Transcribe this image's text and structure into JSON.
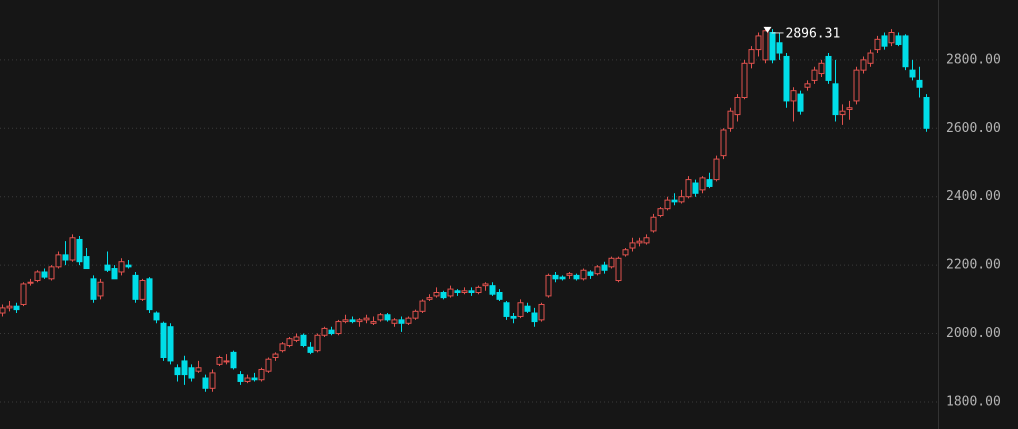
{
  "chart_data": {
    "type": "candlestick",
    "up_color": "#e0524e",
    "down_color": "#00dde8",
    "grid": true,
    "ylim": [
      1721,
      2975
    ],
    "yticks": [
      {
        "value": 1800,
        "label": "1800.00"
      },
      {
        "value": 2000,
        "label": "2000.00"
      },
      {
        "value": 2200,
        "label": "2200.00"
      },
      {
        "value": 2400,
        "label": "2400.00"
      },
      {
        "value": 2600,
        "label": "2600.00"
      },
      {
        "value": 2800,
        "label": "2800.00"
      }
    ],
    "annotation": {
      "index": 109,
      "value": 2896.31
    },
    "ohlc": [
      [
        2060,
        2085,
        2050,
        2075
      ],
      [
        2075,
        2095,
        2065,
        2080
      ],
      [
        2080,
        2090,
        2060,
        2070
      ],
      [
        2085,
        2150,
        2080,
        2145
      ],
      [
        2150,
        2160,
        2140,
        2150
      ],
      [
        2155,
        2185,
        2150,
        2180
      ],
      [
        2180,
        2190,
        2160,
        2165
      ],
      [
        2160,
        2200,
        2155,
        2195
      ],
      [
        2195,
        2240,
        2190,
        2230
      ],
      [
        2230,
        2270,
        2200,
        2215
      ],
      [
        2215,
        2290,
        2210,
        2280
      ],
      [
        2275,
        2285,
        2200,
        2210
      ],
      [
        2225,
        2250,
        2190,
        2190
      ],
      [
        2160,
        2170,
        2090,
        2100
      ],
      [
        2110,
        2160,
        2100,
        2150
      ],
      [
        2200,
        2240,
        2180,
        2185
      ],
      [
        2190,
        2200,
        2160,
        2160
      ],
      [
        2180,
        2220,
        2170,
        2210
      ],
      [
        2200,
        2215,
        2190,
        2195
      ],
      [
        2170,
        2180,
        2090,
        2100
      ],
      [
        2100,
        2160,
        2095,
        2155
      ],
      [
        2160,
        2165,
        2060,
        2070
      ],
      [
        2060,
        2065,
        2030,
        2040
      ],
      [
        2030,
        2035,
        1920,
        1930
      ],
      [
        2020,
        2030,
        1910,
        1920
      ],
      [
        1900,
        1910,
        1860,
        1880
      ],
      [
        1920,
        1935,
        1850,
        1880
      ],
      [
        1900,
        1910,
        1860,
        1870
      ],
      [
        1890,
        1920,
        1885,
        1900
      ],
      [
        1870,
        1880,
        1830,
        1840
      ],
      [
        1840,
        1895,
        1830,
        1885
      ],
      [
        1910,
        1935,
        1905,
        1930
      ],
      [
        1920,
        1940,
        1910,
        1920
      ],
      [
        1945,
        1950,
        1895,
        1900
      ],
      [
        1880,
        1890,
        1850,
        1860
      ],
      [
        1860,
        1880,
        1855,
        1870
      ],
      [
        1870,
        1885,
        1860,
        1865
      ],
      [
        1865,
        1900,
        1860,
        1895
      ],
      [
        1890,
        1930,
        1885,
        1925
      ],
      [
        1930,
        1945,
        1920,
        1940
      ],
      [
        1950,
        1975,
        1945,
        1970
      ],
      [
        1965,
        1990,
        1960,
        1985
      ],
      [
        1980,
        2000,
        1975,
        1990
      ],
      [
        1995,
        2000,
        1960,
        1965
      ],
      [
        1960,
        1975,
        1940,
        1945
      ],
      [
        1950,
        2000,
        1945,
        1995
      ],
      [
        1995,
        2020,
        1990,
        2015
      ],
      [
        2010,
        2020,
        1995,
        2000
      ],
      [
        2000,
        2040,
        1995,
        2035
      ],
      [
        2035,
        2055,
        2030,
        2040
      ],
      [
        2040,
        2050,
        2030,
        2035
      ],
      [
        2035,
        2045,
        2020,
        2040
      ],
      [
        2040,
        2055,
        2030,
        2045
      ],
      [
        2030,
        2050,
        2025,
        2035
      ],
      [
        2040,
        2060,
        2035,
        2055
      ],
      [
        2055,
        2060,
        2035,
        2040
      ],
      [
        2030,
        2045,
        2020,
        2040
      ],
      [
        2040,
        2050,
        2005,
        2030
      ],
      [
        2030,
        2050,
        2025,
        2045
      ],
      [
        2045,
        2070,
        2040,
        2065
      ],
      [
        2065,
        2100,
        2060,
        2095
      ],
      [
        2100,
        2115,
        2095,
        2105
      ],
      [
        2110,
        2135,
        2105,
        2120
      ],
      [
        2120,
        2125,
        2100,
        2105
      ],
      [
        2110,
        2140,
        2105,
        2130
      ],
      [
        2125,
        2130,
        2110,
        2120
      ],
      [
        2120,
        2135,
        2115,
        2125
      ],
      [
        2125,
        2135,
        2110,
        2120
      ],
      [
        2120,
        2140,
        2115,
        2135
      ],
      [
        2140,
        2150,
        2125,
        2145
      ],
      [
        2140,
        2150,
        2110,
        2115
      ],
      [
        2120,
        2130,
        2095,
        2100
      ],
      [
        2090,
        2095,
        2040,
        2050
      ],
      [
        2050,
        2060,
        2030,
        2045
      ],
      [
        2050,
        2100,
        2045,
        2090
      ],
      [
        2080,
        2090,
        2060,
        2065
      ],
      [
        2060,
        2075,
        2020,
        2035
      ],
      [
        2040,
        2090,
        2035,
        2085
      ],
      [
        2110,
        2175,
        2105,
        2170
      ],
      [
        2170,
        2180,
        2150,
        2160
      ],
      [
        2165,
        2170,
        2155,
        2160
      ],
      [
        2170,
        2180,
        2160,
        2175
      ],
      [
        2170,
        2175,
        2155,
        2160
      ],
      [
        2160,
        2190,
        2155,
        2185
      ],
      [
        2180,
        2185,
        2160,
        2170
      ],
      [
        2175,
        2200,
        2170,
        2195
      ],
      [
        2200,
        2210,
        2175,
        2185
      ],
      [
        2195,
        2225,
        2190,
        2220
      ],
      [
        2155,
        2225,
        2150,
        2220
      ],
      [
        2230,
        2250,
        2225,
        2245
      ],
      [
        2250,
        2280,
        2240,
        2265
      ],
      [
        2265,
        2280,
        2255,
        2270
      ],
      [
        2265,
        2290,
        2260,
        2280
      ],
      [
        2300,
        2350,
        2295,
        2340
      ],
      [
        2345,
        2370,
        2340,
        2365
      ],
      [
        2365,
        2400,
        2360,
        2390
      ],
      [
        2390,
        2410,
        2375,
        2385
      ],
      [
        2385,
        2420,
        2380,
        2400
      ],
      [
        2400,
        2460,
        2395,
        2450
      ],
      [
        2440,
        2450,
        2400,
        2410
      ],
      [
        2420,
        2460,
        2410,
        2455
      ],
      [
        2450,
        2470,
        2425,
        2430
      ],
      [
        2450,
        2520,
        2445,
        2510
      ],
      [
        2520,
        2600,
        2510,
        2595
      ],
      [
        2600,
        2660,
        2590,
        2650
      ],
      [
        2640,
        2700,
        2620,
        2690
      ],
      [
        2690,
        2800,
        2685,
        2790
      ],
      [
        2790,
        2840,
        2775,
        2830
      ],
      [
        2830,
        2880,
        2810,
        2870
      ],
      [
        2800,
        2896.31,
        2790,
        2885
      ],
      [
        2880,
        2890,
        2790,
        2800
      ],
      [
        2850,
        2880,
        2800,
        2820
      ],
      [
        2810,
        2820,
        2660,
        2680
      ],
      [
        2680,
        2720,
        2620,
        2710
      ],
      [
        2700,
        2710,
        2640,
        2650
      ],
      [
        2720,
        2740,
        2710,
        2730
      ],
      [
        2740,
        2780,
        2730,
        2770
      ],
      [
        2760,
        2800,
        2750,
        2790
      ],
      [
        2810,
        2820,
        2730,
        2740
      ],
      [
        2730,
        2800,
        2620,
        2640
      ],
      [
        2640,
        2670,
        2610,
        2650
      ],
      [
        2655,
        2680,
        2625,
        2660
      ],
      [
        2680,
        2780,
        2670,
        2770
      ],
      [
        2770,
        2810,
        2760,
        2800
      ],
      [
        2790,
        2830,
        2780,
        2820
      ],
      [
        2830,
        2870,
        2820,
        2860
      ],
      [
        2870,
        2880,
        2830,
        2840
      ],
      [
        2850,
        2890,
        2840,
        2880
      ],
      [
        2870,
        2880,
        2840,
        2845
      ],
      [
        2870,
        2875,
        2770,
        2780
      ],
      [
        2770,
        2800,
        2740,
        2750
      ],
      [
        2740,
        2780,
        2690,
        2720
      ],
      [
        2690,
        2700,
        2590,
        2600
      ]
    ]
  }
}
